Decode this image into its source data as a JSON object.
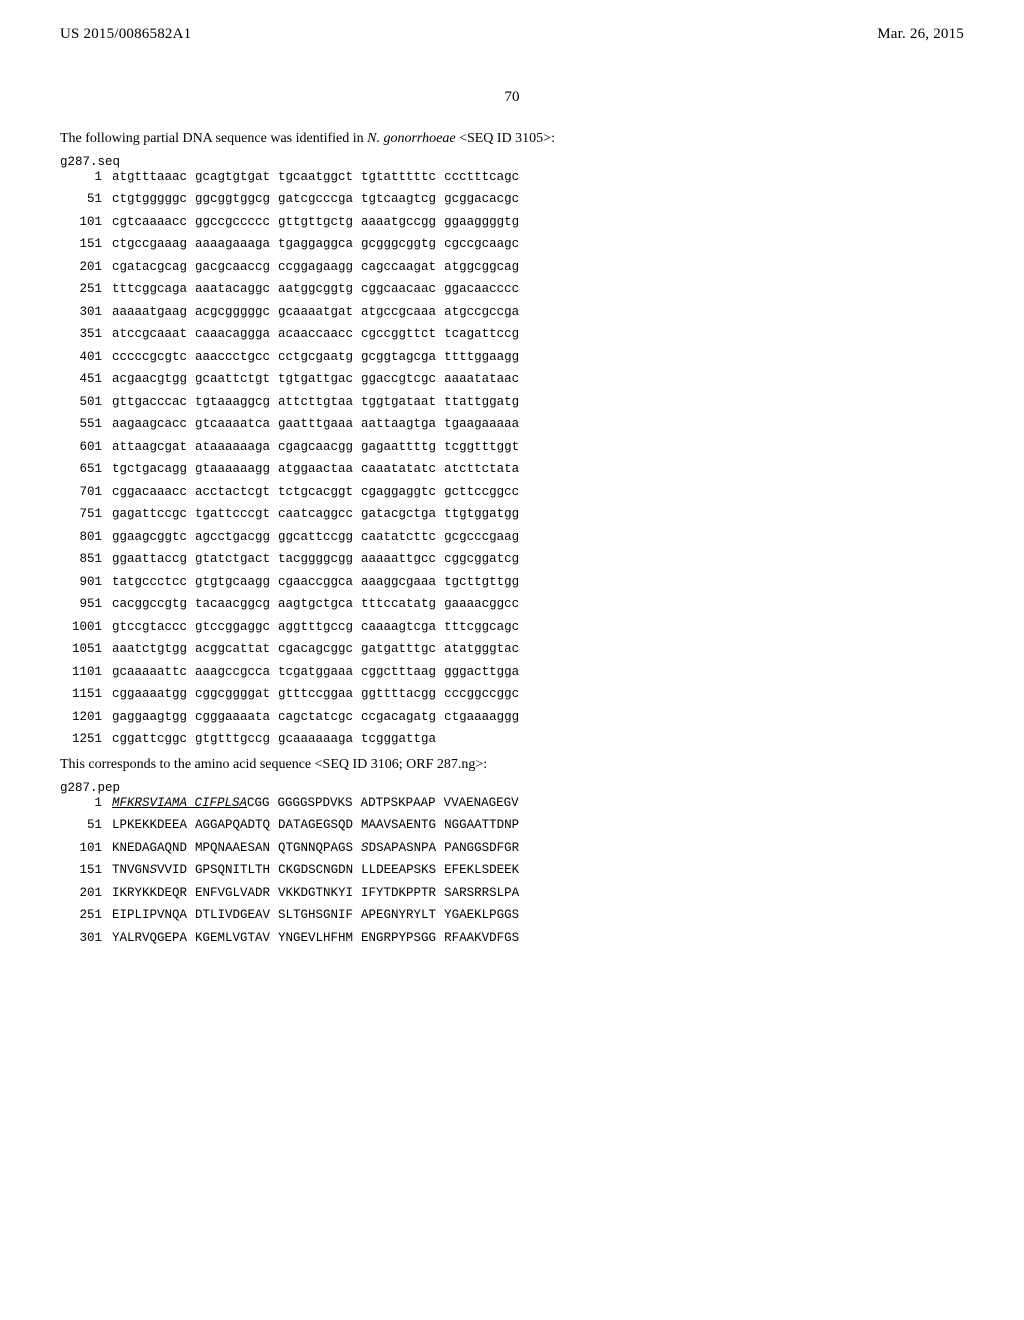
{
  "header": {
    "pubnum": "US 2015/0086582A1",
    "pubdate": "Mar. 26, 2015"
  },
  "pagenum": "70",
  "intro": {
    "line1": "The following partial DNA sequence was identified in ",
    "organism": "N. gonorrhoeae",
    "seqid": " <SEQ ID 3105>:"
  },
  "dna": {
    "header": "g287.seq",
    "rows": [
      {
        "n": "1",
        "g": [
          "atgtttaaac",
          "gcagtgtgat",
          "tgcaatggct",
          "tgtatttttc",
          "ccctttcagc"
        ]
      },
      {
        "n": "51",
        "g": [
          "ctgtgggggc",
          "ggcggtggcg",
          "gatcgcccga",
          "tgtcaagtcg",
          "gcggacacgc"
        ]
      },
      {
        "n": "101",
        "g": [
          "cgtcaaaacc",
          "ggccgccccc",
          "gttgttgctg",
          "aaaatgccgg",
          "ggaaggggtg"
        ]
      },
      {
        "n": "151",
        "g": [
          "ctgccgaaag",
          "aaaagaaaga",
          "tgaggaggca",
          "gcgggcggtg",
          "cgccgcaagc"
        ]
      },
      {
        "n": "201",
        "g": [
          "cgatacgcag",
          "gacgcaaccg",
          "ccggagaagg",
          "cagccaagat",
          "atggcggcag"
        ]
      },
      {
        "n": "251",
        "g": [
          "tttcggcaga",
          "aaatacaggc",
          "aatggcggtg",
          "cggcaacaac",
          "ggacaacccc"
        ]
      },
      {
        "n": "301",
        "g": [
          "aaaaatgaag",
          "acgcgggggc",
          "gcaaaatgat",
          "atgccgcaaa",
          "atgccgccga"
        ]
      },
      {
        "n": "351",
        "g": [
          "atccgcaaat",
          "caaacaggga",
          "acaaccaacc",
          "cgccggttct",
          "tcagattccg"
        ]
      },
      {
        "n": "401",
        "g": [
          "cccccgcgtc",
          "aaaccctgcc",
          "cctgcgaatg",
          "gcggtagcga",
          "ttttggaagg"
        ]
      },
      {
        "n": "451",
        "g": [
          "acgaacgtgg",
          "gcaattctgt",
          "tgtgattgac",
          "ggaccgtcgc",
          "aaaatataac"
        ]
      },
      {
        "n": "501",
        "g": [
          "gttgacccac",
          "tgtaaaggcg",
          "attcttgtaa",
          "tggtgataat",
          "ttattggatg"
        ]
      },
      {
        "n": "551",
        "g": [
          "aagaagcacc",
          "gtcaaaatca",
          "gaatttgaaa",
          "aattaagtga",
          "tgaagaaaaa"
        ]
      },
      {
        "n": "601",
        "g": [
          "attaagcgat",
          "ataaaaaaga",
          "cgagcaacgg",
          "gagaattttg",
          "tcggtttggt"
        ]
      },
      {
        "n": "651",
        "g": [
          "tgctgacagg",
          "gtaaaaaagg",
          "atggaactaa",
          "caaatatatc",
          "atcttctata"
        ]
      },
      {
        "n": "701",
        "g": [
          "cggacaaacc",
          "acctactcgt",
          "tctgcacggt",
          "cgaggaggtc",
          "gcttccggcc"
        ]
      },
      {
        "n": "751",
        "g": [
          "gagattccgc",
          "tgattcccgt",
          "caatcaggcc",
          "gatacgctga",
          "ttgtggatgg"
        ]
      },
      {
        "n": "801",
        "g": [
          "ggaagcggtc",
          "agcctgacgg",
          "ggcattccgg",
          "caatatcttc",
          "gcgcccgaag"
        ]
      },
      {
        "n": "851",
        "g": [
          "ggaattaccg",
          "gtatctgact",
          "tacggggcgg",
          "aaaaattgcc",
          "cggcggatcg"
        ]
      },
      {
        "n": "901",
        "g": [
          "tatgccctcc",
          "gtgtgcaagg",
          "cgaaccggca",
          "aaaggcgaaa",
          "tgcttgttgg"
        ]
      },
      {
        "n": "951",
        "g": [
          "cacggccgtg",
          "tacaacggcg",
          "aagtgctgca",
          "tttccatatg",
          "gaaaacggcc"
        ]
      },
      {
        "n": "1001",
        "g": [
          "gtccgtaccc",
          "gtccggaggc",
          "aggtttgccg",
          "caaaagtcga",
          "tttcggcagc"
        ]
      },
      {
        "n": "1051",
        "g": [
          "aaatctgtgg",
          "acggcattat",
          "cgacagcggc",
          "gatgatttgc",
          "atatgggtac"
        ]
      },
      {
        "n": "1101",
        "g": [
          "gcaaaaattc",
          "aaagccgcca",
          "tcgatggaaa",
          "cggctttaag",
          "gggacttgga"
        ]
      },
      {
        "n": "1151",
        "g": [
          "cggaaaatgg",
          "cggcggggat",
          "gtttccggaa",
          "ggttttacgg",
          "cccggccggc"
        ]
      },
      {
        "n": "1201",
        "g": [
          "gaggaagtgg",
          "cgggaaaata",
          "cagctatcgc",
          "ccgacagatg",
          "ctgaaaaggg"
        ]
      },
      {
        "n": "1251",
        "g": [
          "cggattcggc",
          "gtgtttgccg",
          "gcaaaaaaga",
          "tcgggattga"
        ]
      }
    ]
  },
  "corresponds": {
    "text": "This corresponds to the amino acid sequence <SEQ ID 3106; ORF 287.ng>:"
  },
  "pep": {
    "header": "g287.pep",
    "rows": [
      {
        "n": "1",
        "g": [
          {
            "pre": "",
            "ital": "MFKRSVIAMA CIFPLSA",
            "post": "CGG"
          },
          {
            "pre": "GGGGSPDVKS",
            "ital": "",
            "post": ""
          },
          {
            "pre": "ADTPSKPAAP",
            "ital": "",
            "post": ""
          },
          {
            "pre": "VVAENAGEGV",
            "ital": "",
            "post": ""
          }
        ]
      },
      {
        "n": "51",
        "g": [
          {
            "pre": "LPKEKKDEEA",
            "ital": "",
            "post": ""
          },
          {
            "pre": "AGGAPQADTQ",
            "ital": "",
            "post": ""
          },
          {
            "pre": "DATAGEGSQD",
            "ital": "",
            "post": ""
          },
          {
            "pre": "MAAVSAENTG",
            "ital": "",
            "post": ""
          },
          {
            "pre": "NGGAATTDNP",
            "ital": "",
            "post": ""
          }
        ]
      },
      {
        "n": "101",
        "g": [
          {
            "pre": "KNEDAGAQND",
            "ital": "",
            "post": ""
          },
          {
            "pre": "MPQNAAESAN",
            "ital": "",
            "post": ""
          },
          {
            "pre": "QTGNNQPAGS",
            "ital": "",
            "post": ""
          },
          {
            "pre": "",
            "ital": "S",
            "post": "DSAPASNPA"
          },
          {
            "pre": "PANGGSDFGR",
            "ital": "",
            "post": ""
          }
        ]
      },
      {
        "n": "151",
        "g": [
          {
            "pre": "TNVGN",
            "ital": "S",
            "post": "VVID"
          },
          {
            "pre": "GPSQNITLTH",
            "ital": "",
            "post": ""
          },
          {
            "pre": "CKGDSCNGDN",
            "ital": "",
            "post": ""
          },
          {
            "pre": "LLDEEAPSKS",
            "ital": "",
            "post": ""
          },
          {
            "pre": "EFEKLSDEEK",
            "ital": "",
            "post": ""
          }
        ]
      },
      {
        "n": "201",
        "g": [
          {
            "pre": "IKRYKKDEQR",
            "ital": "",
            "post": ""
          },
          {
            "pre": "ENFVGLVADR",
            "ital": "",
            "post": ""
          },
          {
            "pre": "VKKDGTNKYI",
            "ital": "",
            "post": ""
          },
          {
            "pre": "IFYTDKPPTR",
            "ital": "",
            "post": ""
          },
          {
            "pre": "SARSRRSLPA",
            "ital": "",
            "post": ""
          }
        ]
      },
      {
        "n": "251",
        "g": [
          {
            "pre": "EIPLIPVNQA",
            "ital": "",
            "post": ""
          },
          {
            "pre": "DTLIVDGEAV",
            "ital": "",
            "post": ""
          },
          {
            "pre": "SLTGHSGNIF",
            "ital": "",
            "post": ""
          },
          {
            "pre": "APEGNYRYLT",
            "ital": "",
            "post": ""
          },
          {
            "pre": "YGAEKLPGGS",
            "ital": "",
            "post": ""
          }
        ]
      },
      {
        "n": "301",
        "g": [
          {
            "pre": "YALRVQGEPA",
            "ital": "",
            "post": ""
          },
          {
            "pre": "KGEMLVGTAV",
            "ital": "",
            "post": ""
          },
          {
            "pre": "YNGEVLHFHM",
            "ital": "",
            "post": ""
          },
          {
            "pre": "ENGRPYPSGG",
            "ital": "",
            "post": ""
          },
          {
            "pre": "RFAAKVDFGS",
            "ital": "",
            "post": ""
          }
        ]
      }
    ]
  }
}
